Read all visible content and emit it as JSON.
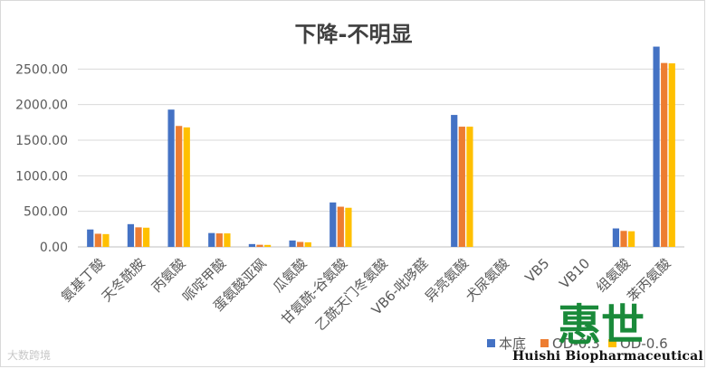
{
  "chart_data": {
    "type": "bar",
    "title": "下降-不明显",
    "categories": [
      "氨基丁酸",
      "天冬酰胺",
      "丙氨酸",
      "哌啶甲酸",
      "蛋氨酸亚砜",
      "瓜氨酸",
      "甘氨酰-谷氨酸",
      "乙酰天门冬氨酸",
      "VB6-吡哆醛",
      "异亮氨酸",
      "犬尿氨酸",
      "VB5",
      "VB10",
      "组氨酸",
      "苯丙氨酸"
    ],
    "series": [
      {
        "name": "本底",
        "color": "#4472c4",
        "values": [
          245,
          320,
          1930,
          195,
          40,
          90,
          625,
          0,
          0,
          1855,
          0,
          0,
          0,
          260,
          2815
        ]
      },
      {
        "name": "OD-0.3",
        "color": "#ed7d31",
        "values": [
          185,
          275,
          1700,
          190,
          30,
          70,
          565,
          0,
          0,
          1690,
          0,
          0,
          0,
          225,
          2585
        ]
      },
      {
        "name": "OD-0.6",
        "color": "#ffc000",
        "values": [
          180,
          270,
          1680,
          190,
          28,
          65,
          550,
          0,
          0,
          1690,
          0,
          0,
          0,
          220,
          2580
        ]
      }
    ],
    "yticks": [
      "0.00",
      "500.00",
      "1000.00",
      "1500.00",
      "2000.00",
      "2500.00"
    ],
    "ylim": [
      0,
      3000
    ],
    "grid": true,
    "legend": "bottom-right"
  },
  "watermark": "大数跨境",
  "brand": {
    "logo_text": "惠世",
    "caption": "Huishi Biopharmaceutical"
  }
}
